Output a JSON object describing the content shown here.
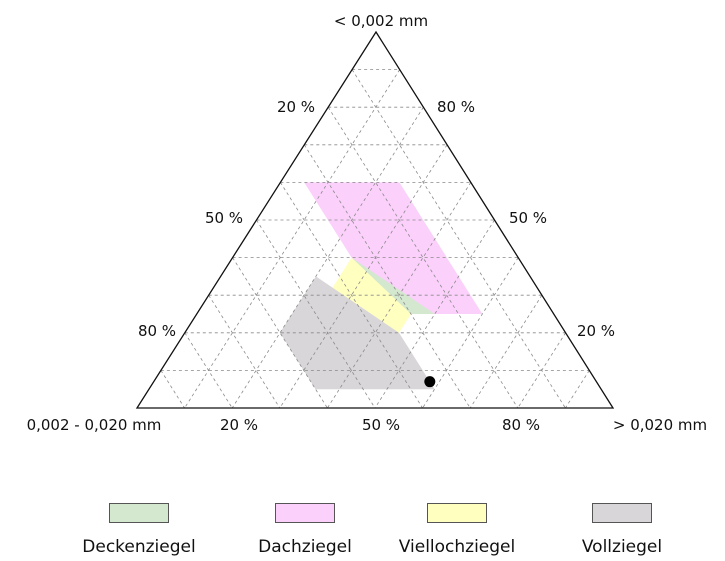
{
  "chart_data": {
    "type": "ternary",
    "axes": {
      "top": "< 0,002 mm",
      "left": "0,002 - 0,020 mm",
      "right": "> 0,020 mm"
    },
    "tick_labels": {
      "left_edge": [
        "20 %",
        "50 %",
        "80 %"
      ],
      "right_edge": [
        "80 %",
        "50 %",
        "20 %"
      ],
      "bottom_edge": [
        "20 %",
        "50 %",
        "80 %"
      ]
    },
    "grid": true,
    "grid_step_percent": 10,
    "regions": [
      {
        "name": "Deckenziegel",
        "color": "#d4e8cf",
        "vertices": [
          [
            55,
            15,
            30
          ],
          [
            55,
            25,
            20
          ],
          [
            40,
            35,
            25
          ],
          [
            25,
            35,
            40
          ],
          [
            25,
            25,
            50
          ],
          [
            40,
            15,
            45
          ]
        ]
      },
      {
        "name": "Dachziegel",
        "color": "#fbd0fb",
        "vertices": [
          [
            60,
            15,
            25
          ],
          [
            60,
            35,
            5
          ],
          [
            40,
            35,
            25
          ],
          [
            25,
            25,
            50
          ],
          [
            25,
            15,
            60
          ],
          [
            40,
            15,
            45
          ]
        ]
      },
      {
        "name": "Viellochziegel",
        "color": "#ffffc0",
        "vertices": [
          [
            40,
            35,
            25
          ],
          [
            30,
            45,
            25
          ],
          [
            20,
            45,
            35
          ],
          [
            20,
            35,
            45
          ],
          [
            25,
            30,
            45
          ]
        ]
      },
      {
        "name": "Vollziegel",
        "color": "#d8d6d8",
        "vertices": [
          [
            35,
            45,
            20
          ],
          [
            20,
            60,
            20
          ],
          [
            5,
            60,
            35
          ],
          [
            5,
            35,
            60
          ],
          [
            20,
            35,
            45
          ]
        ]
      }
    ],
    "points": [
      {
        "clay_lt_0_002": 7,
        "silt_0_002_0_020": 35,
        "gt_0_020": 58
      }
    ],
    "legend_position": "bottom"
  },
  "legend": [
    {
      "label": "Deckenziegel",
      "color": "#d4e8cf"
    },
    {
      "label": "Dachziegel",
      "color": "#fbd0fb"
    },
    {
      "label": "Viellochziegel",
      "color": "#ffffc0"
    },
    {
      "label": "Vollziegel",
      "color": "#d8d6d8"
    }
  ]
}
